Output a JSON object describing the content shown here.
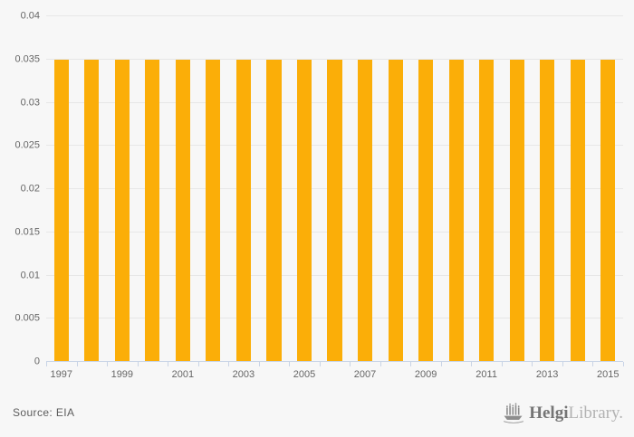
{
  "page": {
    "background": "#f7f7f7"
  },
  "chart_data": {
    "type": "bar",
    "title": "",
    "xlabel": "",
    "ylabel": "",
    "categories": [
      "1997",
      "1998",
      "1999",
      "2000",
      "2001",
      "2002",
      "2003",
      "2004",
      "2005",
      "2006",
      "2007",
      "2008",
      "2009",
      "2010",
      "2011",
      "2012",
      "2013",
      "2014",
      "2015"
    ],
    "values": [
      0.035,
      0.035,
      0.035,
      0.035,
      0.035,
      0.035,
      0.035,
      0.035,
      0.035,
      0.035,
      0.035,
      0.035,
      0.035,
      0.035,
      0.035,
      0.035,
      0.035,
      0.035,
      0.035
    ],
    "ylim": [
      0,
      0.04
    ],
    "ytick_values": [
      0,
      0.005,
      0.01,
      0.015,
      0.02,
      0.025,
      0.03,
      0.035,
      0.04
    ],
    "ytick_labels": [
      "0",
      "0.005",
      "0.01",
      "0.015",
      "0.02",
      "0.025",
      "0.03",
      "0.035",
      "0.04"
    ],
    "x_label_step": 2,
    "grid": true,
    "legend": "none",
    "colors": {
      "bar": "#fbae08",
      "gridline": "#e7e7e7",
      "axis": "#c9d4e6",
      "tick_text": "#666666"
    }
  },
  "footer": {
    "source_label": "Source: EIA",
    "logo": {
      "icon": "viking-ship-chart-icon",
      "text_primary": "Helgi",
      "text_secondary": "Library.",
      "color_primary": "#757575",
      "color_secondary": "#b3b3b3",
      "icon_color": "#8d8d8d"
    }
  }
}
